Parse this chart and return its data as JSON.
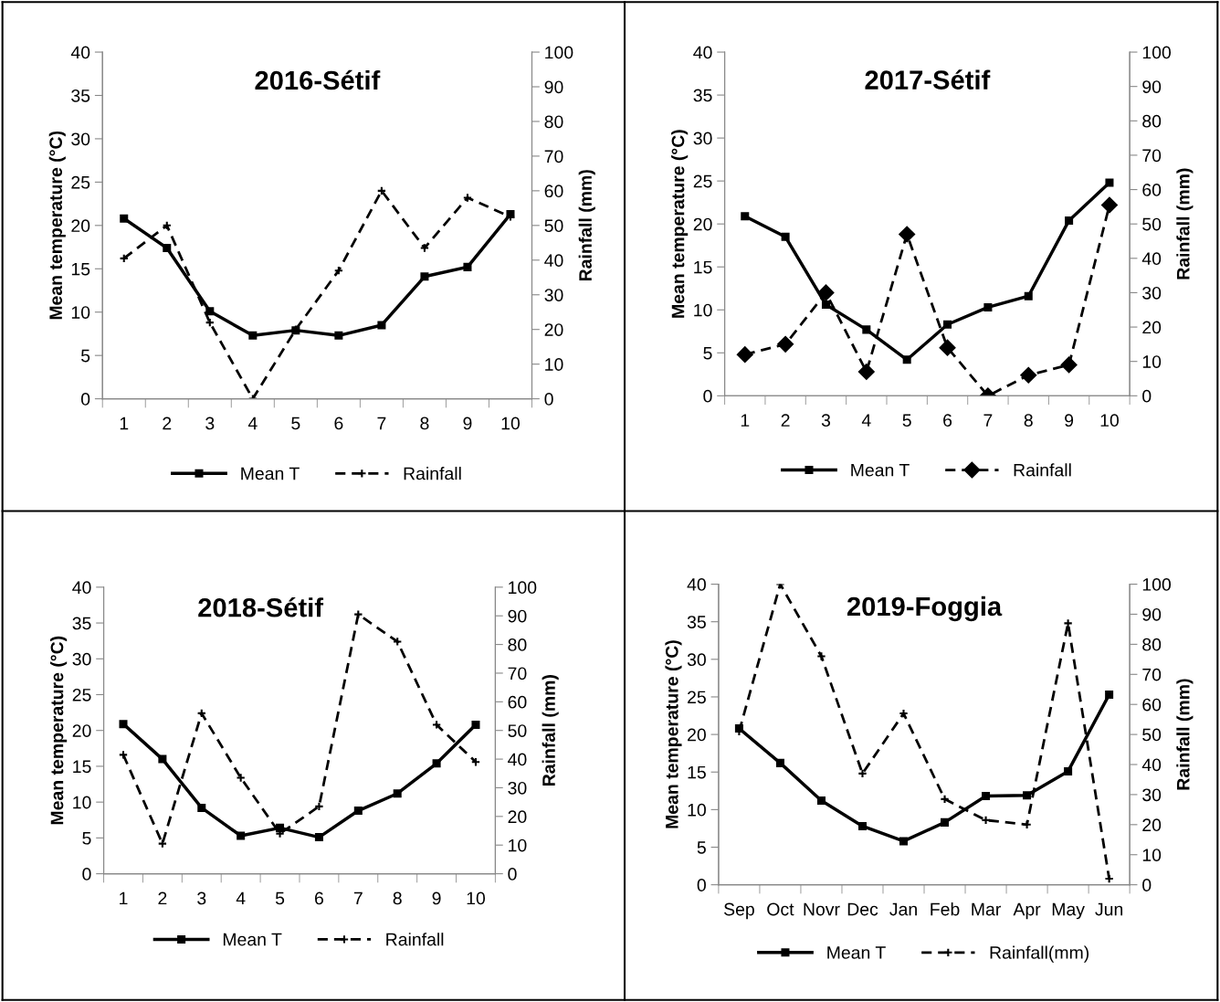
{
  "chart_data": [
    {
      "type": "line",
      "title": "2016-Sétif",
      "ylabel": "Mean temperature (°C)",
      "y2label": "Rainfall (mm)",
      "categories": [
        "1",
        "2",
        "3",
        "4",
        "5",
        "6",
        "7",
        "8",
        "9",
        "10"
      ],
      "ylim": [
        0,
        40
      ],
      "yticks": [
        0,
        5,
        10,
        15,
        20,
        25,
        30,
        35,
        40
      ],
      "y2lim": [
        0,
        100
      ],
      "y2ticks": [
        0,
        10,
        20,
        30,
        40,
        50,
        60,
        70,
        80,
        90,
        100
      ],
      "legend": "bottom",
      "grid": false,
      "series": [
        {
          "name": "Mean T",
          "color": "#000000",
          "line_style": "solid",
          "marker": "square",
          "values": [
            20.8,
            17.4,
            10.1,
            7.3,
            7.9,
            7.3,
            8.5,
            14.1,
            15.2,
            21.3
          ]
        },
        {
          "name": "Rainfall",
          "color": "#000000",
          "line_style": "dashed",
          "marker": "cross",
          "axis": "y2",
          "values": [
            40.5,
            50,
            22,
            0,
            20,
            37,
            60,
            43.5,
            58,
            52.5
          ]
        }
      ]
    },
    {
      "type": "line",
      "title": "2017-Sétif",
      "ylabel": "Mean temperature (°C)",
      "y2label": "Rainfall (mm)",
      "categories": [
        "1",
        "2",
        "3",
        "4",
        "5",
        "6",
        "7",
        "8",
        "9",
        "10"
      ],
      "ylim": [
        0,
        40
      ],
      "yticks": [
        0,
        5,
        10,
        15,
        20,
        25,
        30,
        35,
        40
      ],
      "y2lim": [
        0,
        100
      ],
      "y2ticks": [
        0,
        10,
        20,
        30,
        40,
        50,
        60,
        70,
        80,
        90,
        100
      ],
      "legend": "bottom",
      "grid": false,
      "series": [
        {
          "name": "Mean T",
          "color": "#000000",
          "line_style": "solid",
          "marker": "square",
          "values": [
            20.9,
            18.5,
            10.6,
            7.7,
            4.2,
            8.3,
            10.3,
            11.6,
            20.4,
            24.8
          ]
        },
        {
          "name": "Rainfall",
          "color": "#000000",
          "line_style": "dashed",
          "marker": "diamond",
          "axis": "y2",
          "values": [
            12,
            15,
            30,
            7,
            47,
            14,
            0,
            6,
            9,
            55.5
          ]
        }
      ]
    },
    {
      "type": "line",
      "title": "2018-Sétif",
      "ylabel": "Mean temperature (°C)",
      "y2label": "Rainfall (mm)",
      "categories": [
        "1",
        "2",
        "3",
        "4",
        "5",
        "6",
        "7",
        "8",
        "9",
        "10"
      ],
      "ylim": [
        0,
        40
      ],
      "yticks": [
        0,
        5,
        10,
        15,
        20,
        25,
        30,
        35,
        40
      ],
      "y2lim": [
        0,
        100
      ],
      "y2ticks": [
        0,
        10,
        20,
        30,
        40,
        50,
        60,
        70,
        80,
        90,
        100
      ],
      "legend": "bottom",
      "grid": false,
      "series": [
        {
          "name": "Mean T",
          "color": "#000000",
          "line_style": "solid",
          "marker": "square",
          "values": [
            20.9,
            16,
            9.2,
            5.3,
            6.4,
            5.1,
            8.8,
            11.2,
            15.4,
            20.8
          ]
        },
        {
          "name": "Rainfall",
          "color": "#000000",
          "line_style": "dashed",
          "marker": "cross",
          "axis": "y2",
          "values": [
            41.5,
            10.5,
            56,
            33.5,
            14,
            23.5,
            90.5,
            81,
            52,
            39
          ]
        }
      ]
    },
    {
      "type": "line",
      "title": "2019-Foggia",
      "ylabel": "Mean temperature (°C)",
      "y2label": "Rainfall (mm)",
      "categories": [
        "Sep",
        "Oct",
        "Novr",
        "Dec",
        "Jan",
        "Feb",
        "Mar",
        "Apr",
        "May",
        "Jun"
      ],
      "ylim": [
        0,
        40
      ],
      "yticks": [
        0,
        5,
        10,
        15,
        20,
        25,
        30,
        35,
        40
      ],
      "y2lim": [
        0,
        100
      ],
      "y2ticks": [
        0,
        10,
        20,
        30,
        40,
        50,
        60,
        70,
        80,
        90,
        100
      ],
      "legend": "bottom",
      "grid": false,
      "series": [
        {
          "name": "Mean T",
          "color": "#000000",
          "line_style": "solid",
          "marker": "square",
          "values": [
            20.8,
            16.2,
            11.2,
            7.8,
            5.8,
            8.3,
            11.8,
            11.9,
            15.1,
            25.3
          ]
        },
        {
          "name": "Rainfall(mm)",
          "color": "#000000",
          "line_style": "dashed",
          "marker": "cross",
          "axis": "y2",
          "values": [
            51,
            100,
            76,
            37,
            57,
            28.5,
            21.5,
            20,
            87,
            2
          ]
        }
      ]
    }
  ]
}
